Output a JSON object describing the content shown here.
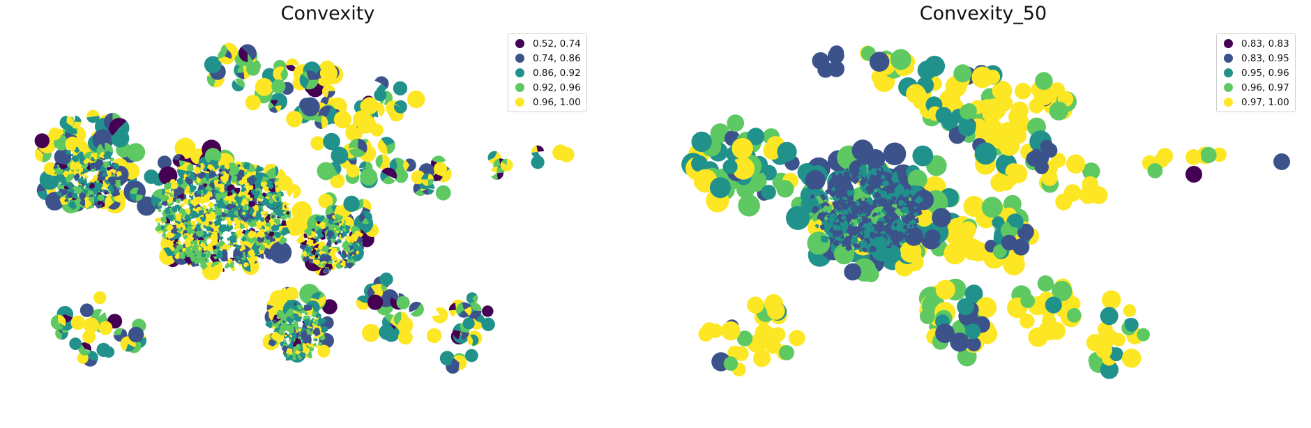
{
  "palette": {
    "c0": "#440154",
    "c1": "#3b528b",
    "c2": "#21918c",
    "c3": "#5ec962",
    "c4": "#fde725"
  },
  "maps": [
    {
      "title": "Convexity",
      "legend": [
        {
          "label": "0.52, 0.74",
          "color": "#440154"
        },
        {
          "label": "0.74, 0.86",
          "color": "#3b528b"
        },
        {
          "label": "0.86, 0.92",
          "color": "#21918c"
        },
        {
          "label": "0.92, 0.96",
          "color": "#5ec962"
        },
        {
          "label": "0.96, 1.00",
          "color": "#fde725"
        }
      ]
    },
    {
      "title": "Convexity_50",
      "legend": [
        {
          "label": "0.83, 0.83",
          "color": "#440154"
        },
        {
          "label": "0.83, 0.95",
          "color": "#3b528b"
        },
        {
          "label": "0.95, 0.96",
          "color": "#21918c"
        },
        {
          "label": "0.96, 0.97",
          "color": "#5ec962"
        },
        {
          "label": "0.97, 1.00",
          "color": "#fde725"
        }
      ]
    }
  ]
}
